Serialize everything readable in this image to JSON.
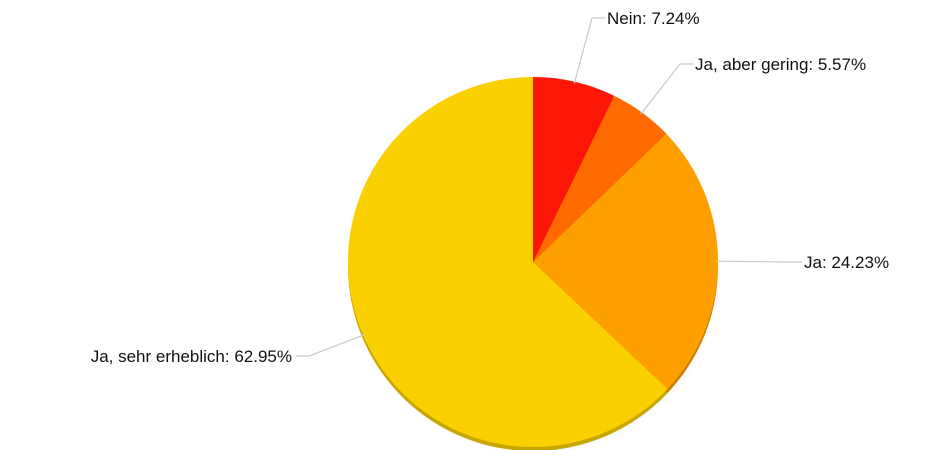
{
  "chart_data": {
    "type": "pie",
    "title": "",
    "slices": [
      {
        "label": "Nein",
        "value": 7.24,
        "display": "Nein: 7.24%",
        "color": "#fb1605"
      },
      {
        "label": "Ja, aber gering",
        "value": 5.57,
        "display": "Ja, aber gering: 5.57%",
        "color": "#fe6a00"
      },
      {
        "label": "Ja",
        "value": 24.23,
        "display": "Ja: 24.23%",
        "color": "#fe9f00"
      },
      {
        "label": "Ja, sehr erheblich",
        "value": 62.95,
        "display": "Ja, sehr erheblich: 62.95%",
        "color": "#fad000"
      }
    ],
    "start_angle": "12 o'clock",
    "direction": "clockwise",
    "legend": "none",
    "labels": "outside with leader lines"
  }
}
